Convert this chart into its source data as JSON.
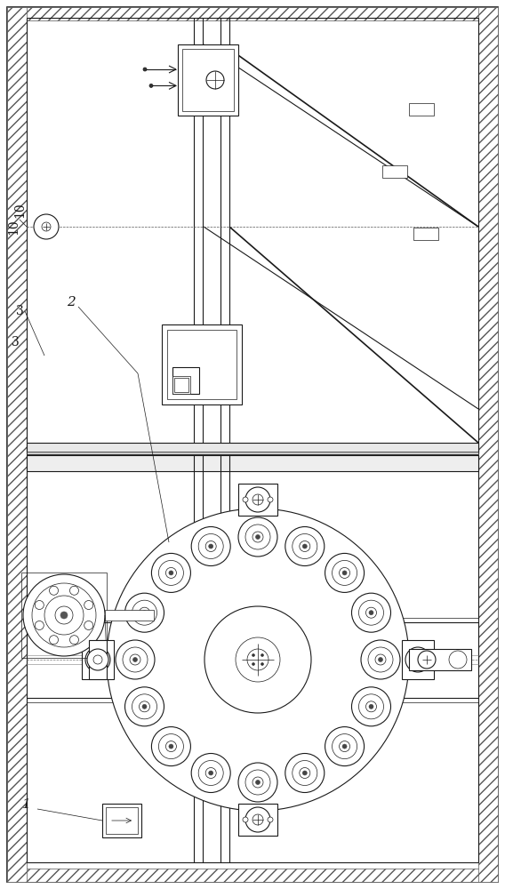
{
  "bg_color": "#ffffff",
  "line_color": "#1a1a1a",
  "label_10": "10",
  "label_3": "3",
  "label_2": "2",
  "label_1": "1",
  "fig_width": 5.68,
  "fig_height": 10.0,
  "dpi": 100
}
